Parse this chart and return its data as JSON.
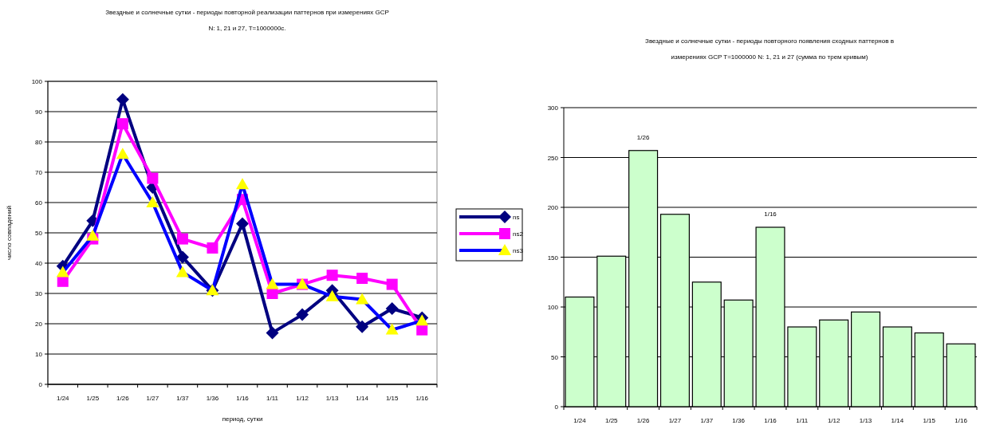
{
  "chart_data": [
    {
      "type": "line",
      "title": "Звездные и солнечные сутки - периоды повторной реализации паттернов при измерениях GCP\nN: 1, 21 и 27, T=1000000с.",
      "xlabel": "период, сутки",
      "ylabel": "число совпадений",
      "categories": [
        "1/24",
        "1/25",
        "1/26",
        "1/27",
        "1/37",
        "1/36",
        "1/16",
        "1/11",
        "1/12",
        "1/13",
        "1/14",
        "1/15",
        "1/16"
      ],
      "series": [
        {
          "name": "ns",
          "color": "#000080",
          "marker": "diamond",
          "values": [
            39,
            54,
            94,
            65,
            42,
            31,
            53,
            17,
            23,
            31,
            19,
            25,
            22
          ]
        },
        {
          "name": "ns2",
          "color": "#ff00ff",
          "marker": "square",
          "values": [
            34,
            48,
            86,
            68,
            48,
            45,
            61,
            30,
            33,
            36,
            35,
            33,
            18
          ]
        },
        {
          "name": "ns3",
          "color": "#0000ff",
          "marker": "triangle",
          "colors": [
            "#ffff00",
            "#ffff00",
            "#ffff00",
            "#ffff00",
            "#ffff00",
            "#ffff00",
            "#ffff00",
            "#ffff00",
            "#ffff00",
            "#ffff00",
            "#ffff00",
            "#ffff00",
            "#ffff00"
          ],
          "values": [
            37,
            49,
            76,
            60,
            37,
            31,
            66,
            33,
            33,
            29,
            28,
            18,
            21
          ]
        }
      ],
      "ylim": [
        0,
        100
      ],
      "yticks": [
        0,
        10,
        20,
        30,
        40,
        50,
        60,
        70,
        80,
        90,
        100
      ],
      "grid": "y",
      "legend": "right"
    },
    {
      "type": "bar",
      "title": "Звездные и солнечные сутки - периоды повторного появления сходных паттернов в\nизмерениях GCP T=1000000 N: 1, 21 и 27 (сумма по трем кривым)",
      "categories": [
        "1/24",
        "1/25",
        "1/26",
        "1/27",
        "1/37",
        "1/36",
        "1/16",
        "1/11",
        "1/12",
        "1/13",
        "1/14",
        "1/15",
        "1/16"
      ],
      "values": [
        110,
        151,
        257,
        193,
        125,
        107,
        180,
        80,
        87,
        95,
        80,
        74,
        63
      ],
      "color": "#ccffcc",
      "ylim": [
        0,
        300
      ],
      "yticks": [
        0,
        50,
        100,
        150,
        200,
        250,
        300
      ],
      "grid": "y",
      "annotations": [
        {
          "text": "1/26",
          "x": "1/26",
          "y": 257
        },
        {
          "text": "1/16",
          "x": "1/16",
          "y": 180
        }
      ]
    }
  ]
}
